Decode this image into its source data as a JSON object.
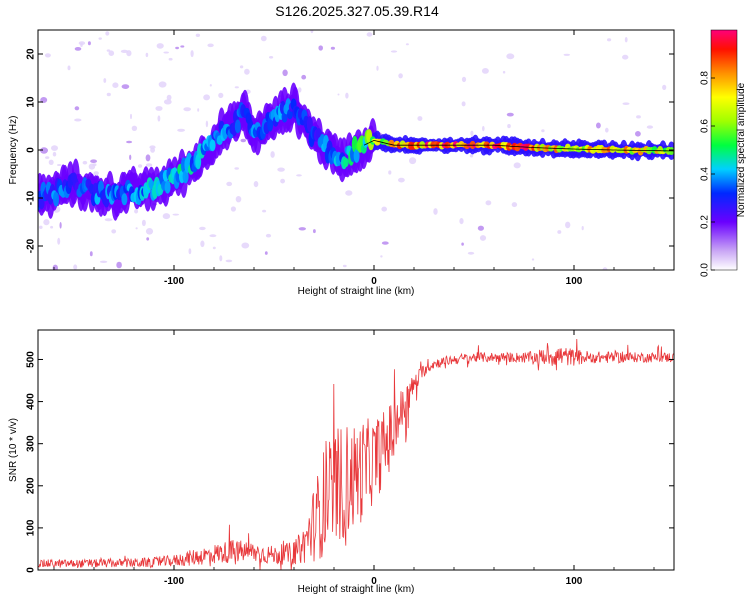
{
  "title": "S126.2025.327.05.39.R14",
  "colors": {
    "snr_line": "#e8373a",
    "frame": "#000000",
    "ridge_line": "#000000"
  },
  "colorbar": {
    "label": "Normalized spectral amplitude",
    "ticks": [
      0.0,
      0.2,
      0.4,
      0.6,
      0.8
    ],
    "tick_labels": [
      "0.0",
      "0.2",
      "0.4",
      "0.6",
      "0.8"
    ],
    "range": [
      0,
      1
    ]
  },
  "chart_data": [
    {
      "type": "heatmap",
      "title": "S126.2025.327.05.39.R14",
      "xlabel": "Height of straight line (km)",
      "ylabel": "Frequency (Hz)",
      "xlim": [
        -168,
        150
      ],
      "ylim": [
        -25,
        25
      ],
      "x_ticks": [
        -100,
        0,
        100
      ],
      "x_tick_labels": [
        "-100",
        "0",
        "100"
      ],
      "y_ticks": [
        -20,
        -10,
        0,
        10,
        20
      ],
      "y_tick_labels": [
        "-20",
        "-10",
        "0",
        "10",
        "20"
      ],
      "ridge": {
        "x": [
          -168,
          -160,
          -150,
          -140,
          -130,
          -120,
          -110,
          -100,
          -90,
          -80,
          -75,
          -70,
          -65,
          -60,
          -55,
          -50,
          -45,
          -40,
          -35,
          -30,
          -25,
          -20,
          -15,
          -10,
          -5,
          0,
          10,
          20,
          40,
          60,
          80,
          100,
          120,
          150
        ],
        "y": [
          -10,
          -9,
          -7,
          -9,
          -9.5,
          -8.5,
          -8,
          -6,
          -3,
          2,
          4,
          5,
          8,
          3,
          5,
          6,
          8,
          9,
          6,
          3,
          1,
          -1,
          -2,
          0,
          1,
          2,
          1,
          1,
          1,
          1,
          0.5,
          0.2,
          0,
          -0.2
        ],
        "amplitude": [
          0.3,
          0.35,
          0.3,
          0.35,
          0.35,
          0.35,
          0.4,
          0.45,
          0.4,
          0.35,
          0.35,
          0.35,
          0.3,
          0.35,
          0.3,
          0.35,
          0.35,
          0.3,
          0.3,
          0.3,
          0.35,
          0.4,
          0.4,
          0.45,
          0.5,
          0.6,
          0.75,
          0.8,
          0.9,
          0.95,
          0.8,
          0.7,
          0.75,
          0.65
        ]
      }
    },
    {
      "type": "line",
      "xlabel": "Height of straight line (km)",
      "ylabel": "SNR (10 * v/v)",
      "xlim": [
        -168,
        150
      ],
      "ylim": [
        0,
        570
      ],
      "x_ticks": [
        -100,
        0,
        100
      ],
      "x_tick_labels": [
        "-100",
        "0",
        "100"
      ],
      "y_ticks": [
        0,
        100,
        200,
        300,
        400,
        500
      ],
      "y_tick_labels": [
        "0",
        "100",
        "200",
        "300",
        "400",
        "500"
      ],
      "series": [
        {
          "name": "SNR",
          "x": [
            -168,
            -150,
            -130,
            -110,
            -100,
            -90,
            -80,
            -70,
            -60,
            -50,
            -40,
            -35,
            -30,
            -25,
            -20,
            -15,
            -10,
            -5,
            0,
            5,
            10,
            15,
            20,
            25,
            30,
            40,
            50,
            60,
            70,
            80,
            90,
            100,
            110,
            120,
            130,
            140,
            150
          ],
          "mean": [
            15,
            15,
            16,
            18,
            22,
            30,
            38,
            45,
            42,
            35,
            40,
            60,
            110,
            160,
            190,
            210,
            220,
            240,
            260,
            290,
            330,
            390,
            440,
            475,
            490,
            500,
            505,
            505,
            505,
            505,
            510,
            505,
            505,
            505,
            505,
            505,
            505
          ],
          "noise": [
            10,
            10,
            10,
            12,
            14,
            20,
            24,
            28,
            25,
            22,
            28,
            45,
            90,
            130,
            140,
            140,
            130,
            120,
            100,
            90,
            80,
            50,
            25,
            15,
            12,
            12,
            12,
            12,
            12,
            14,
            28,
            20,
            14,
            14,
            12,
            12,
            12
          ]
        }
      ]
    }
  ]
}
